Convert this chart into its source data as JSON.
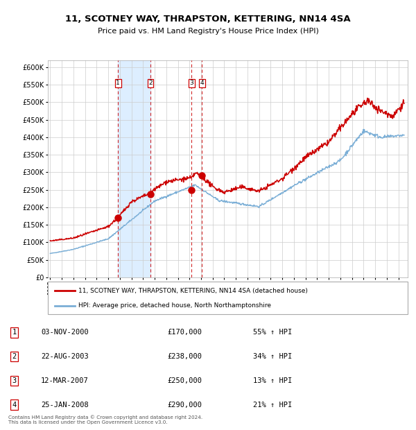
{
  "title1": "11, SCOTNEY WAY, THRAPSTON, KETTERING, NN14 4SA",
  "title2": "Price paid vs. HM Land Registry's House Price Index (HPI)",
  "legend_line1": "11, SCOTNEY WAY, THRAPSTON, KETTERING, NN14 4SA (detached house)",
  "legend_line2": "HPI: Average price, detached house, North Northamptonshire",
  "footer": "Contains HM Land Registry data © Crown copyright and database right 2024.\nThis data is licensed under the Open Government Licence v3.0.",
  "transactions": [
    {
      "num": 1,
      "date": "03-NOV-2000",
      "price": 170000,
      "pct": "55%",
      "dir": "↑",
      "x_year": 2000.84
    },
    {
      "num": 2,
      "date": "22-AUG-2003",
      "price": 238000,
      "pct": "34%",
      "dir": "↑",
      "x_year": 2003.64
    },
    {
      "num": 3,
      "date": "12-MAR-2007",
      "price": 250000,
      "pct": "13%",
      "dir": "↑",
      "x_year": 2007.19
    },
    {
      "num": 4,
      "date": "25-JAN-2008",
      "price": 290000,
      "pct": "21%",
      "dir": "↑",
      "x_year": 2008.07
    }
  ],
  "shade_x1": 2000.84,
  "shade_x2": 2003.64,
  "red_line_color": "#cc0000",
  "blue_line_color": "#7aaed6",
  "shade_color": "#ddeeff",
  "grid_color": "#cccccc",
  "background_color": "#ffffff",
  "ylim": [
    0,
    620000
  ],
  "xlim_start": 1994.8,
  "xlim_end": 2025.8,
  "yticks": [
    0,
    50000,
    100000,
    150000,
    200000,
    250000,
    300000,
    350000,
    400000,
    450000,
    500000,
    550000,
    600000
  ],
  "xtick_years": [
    1995,
    1996,
    1997,
    1998,
    1999,
    2000,
    2001,
    2002,
    2003,
    2004,
    2005,
    2006,
    2007,
    2008,
    2009,
    2010,
    2011,
    2012,
    2013,
    2014,
    2015,
    2016,
    2017,
    2018,
    2019,
    2020,
    2021,
    2022,
    2023,
    2024,
    2025
  ]
}
